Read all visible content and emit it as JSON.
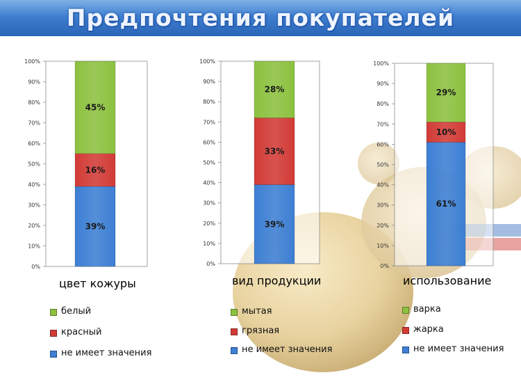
{
  "title": "Предпочтения покупателей",
  "colors": {
    "blue": "#3d7fd4",
    "red": "#d23b36",
    "green": "#8cc13f"
  },
  "chart_data": [
    {
      "type": "bar",
      "stacked": true,
      "categories": [
        "цвет кожуры"
      ],
      "series": [
        {
          "name": "не имеет значения",
          "values": [
            39
          ]
        },
        {
          "name": "красный",
          "values": [
            16
          ]
        },
        {
          "name": "белый",
          "values": [
            45
          ]
        }
      ],
      "ylim": [
        0,
        100
      ],
      "yticks": [
        "0%",
        "10%",
        "20%",
        "30%",
        "40%",
        "50%",
        "60%",
        "70%",
        "80%",
        "90%",
        "100%"
      ],
      "legend": "bottom"
    },
    {
      "type": "bar",
      "stacked": true,
      "categories": [
        "вид продукции"
      ],
      "series": [
        {
          "name": "не имеет значения",
          "values": [
            39
          ]
        },
        {
          "name": "грязная",
          "values": [
            33
          ]
        },
        {
          "name": "мытая",
          "values": [
            28
          ]
        }
      ],
      "ylim": [
        0,
        100
      ],
      "yticks": [
        "0%",
        "10%",
        "20%",
        "30%",
        "40%",
        "50%",
        "60%",
        "70%",
        "80%",
        "90%",
        "100%"
      ],
      "legend": "bottom"
    },
    {
      "type": "bar",
      "stacked": true,
      "categories": [
        "использование"
      ],
      "series": [
        {
          "name": "не имеет значения",
          "values": [
            61
          ]
        },
        {
          "name": "жарка",
          "values": [
            10
          ]
        },
        {
          "name": "варка",
          "values": [
            29
          ]
        }
      ],
      "ylim": [
        0,
        100
      ],
      "yticks": [
        "0%",
        "10%",
        "20%",
        "30%",
        "40%",
        "50%",
        "60%",
        "70%",
        "80%",
        "90%",
        "100%"
      ],
      "legend": "bottom"
    }
  ]
}
